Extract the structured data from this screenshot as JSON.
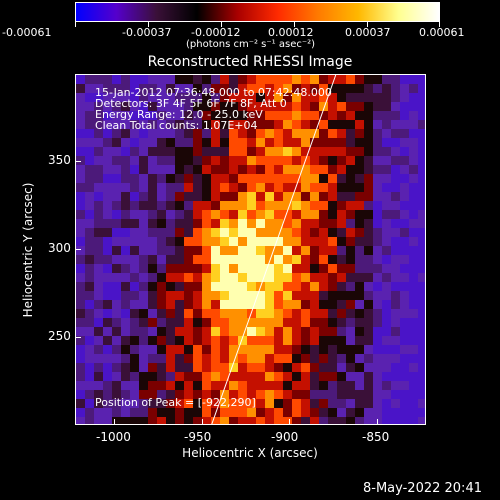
{
  "colorbar": {
    "ticks": [
      "-0.00061",
      "-0.00037",
      "-0.00012",
      "0.00012",
      "0.00037",
      "0.00061"
    ],
    "unit_label": "(photons cm⁻² s⁻¹ asec⁻²)",
    "colors": [
      "#0000ff",
      "#5500cc",
      "#3a1038",
      "#000000",
      "#a80000",
      "#ff2a00",
      "#ff7a00",
      "#ffb800",
      "#ffff90",
      "#ffffff"
    ]
  },
  "plot": {
    "title": "Reconstructed RHESSI Image",
    "info_lines": [
      "15-Jan-2012 07:36:48.000 to 07:42:48.000",
      "Detectors: 3F 4F 5F 6F 7F 8F, Att 0",
      "Energy Range: 12.0 - 25.0 keV",
      "Clean    Total counts: 1.07E+04"
    ],
    "peak_text": "Position of Peak = [-922,290]",
    "xlabel": "Heliocentric X (arcsec)",
    "ylabel": "Heliocentric Y (arcsec)",
    "x_ticks": [
      "-1000",
      "-950",
      "-900",
      "-850"
    ],
    "y_ticks": [
      "350",
      "300",
      "250"
    ],
    "x_range": [
      -1025,
      -825
    ],
    "y_range": [
      200,
      400
    ],
    "limb_line": {
      "x_at_bottom": -948,
      "x_at_top": -877
    }
  },
  "timestamp": "8-May-2022 20:41"
}
